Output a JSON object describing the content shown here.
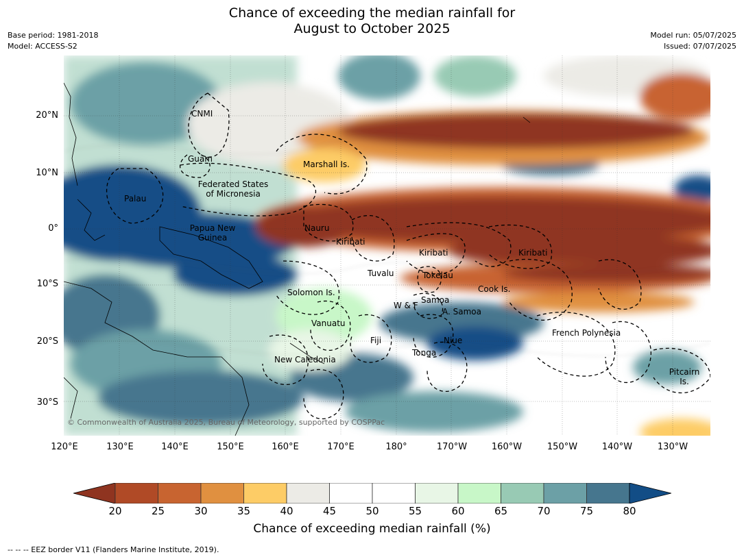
{
  "title_line1": "Chance of exceeding the median rainfall for",
  "title_line2": "August to October 2025",
  "base_period": "Base period: 1981-2018",
  "model": "Model: ACCESS-S2",
  "model_run": "Model run: 05/07/2025",
  "issued": "Issued: 07/07/2025",
  "lat_labels": [
    "20°N",
    "10°N",
    "0°",
    "10°S",
    "20°S",
    "30°S"
  ],
  "lon_labels": [
    "120°E",
    "130°E",
    "140°E",
    "150°E",
    "160°E",
    "170°E",
    "180°",
    "170°W",
    "160°W",
    "150°W",
    "140°W",
    "130°W"
  ],
  "map_labels": {
    "cnmi": "CNMI",
    "guam": "Guam",
    "marshall": "Marshall Is.",
    "fsm_1": "Federated States",
    "fsm_2": "of Micronesia",
    "palau": "Palau",
    "png_1": "Papua New",
    "png_2": "Guinea",
    "nauru": "Nauru",
    "kiribati_w": "Kiribati",
    "kiribati_c": "Kiribati",
    "kiribati_e": "Kiribati",
    "tuvalu": "Tuvalu",
    "tokelau": "Tokelau",
    "cook": "Cook Is.",
    "solomon": "Solomon Is.",
    "wf": "W & F",
    "samoa": "Samoa",
    "asamoa": "A. Samoa",
    "vanuatu": "Vanuatu",
    "fiji": "Fiji",
    "niue": "Niue",
    "tonga": "Tonga",
    "newcal": "New Caledonia",
    "frpoly": "French Polynesia",
    "pitcairn_1": "Pitcairn",
    "pitcairn_2": "Is."
  },
  "copyright": "© Commonwealth of Australia 2025, Bureau of Meteorology, supported by COSPPac",
  "colorbar": {
    "ticks": [
      "20",
      "25",
      "30",
      "35",
      "40",
      "45",
      "50",
      "55",
      "60",
      "65",
      "70",
      "75",
      "80"
    ],
    "colors": [
      "#8f3420",
      "#b04a26",
      "#c86430",
      "#e09040",
      "#fdcc66",
      "#ecebe6",
      "#ffffff",
      "#ffffff",
      "#e8f6e6",
      "#c8f7c8",
      "#98cab4",
      "#6ca0a6",
      "#46768e",
      "#124d86"
    ],
    "label": "Chance of exceeding median rainfall (%)"
  },
  "footnote": "--  --  -- EEZ border V11 (Flanders Marine Institute, 2019)."
}
